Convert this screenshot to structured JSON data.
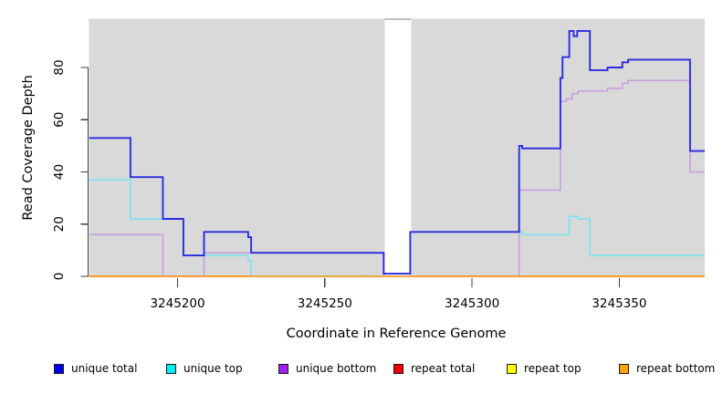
{
  "chart_data": {
    "type": "line",
    "step": true,
    "title": "",
    "xlabel": "Coordinate in Reference Genome",
    "ylabel": "Read Coverage Depth",
    "xlim": [
      3245170,
      3245379
    ],
    "ylim": [
      0,
      99
    ],
    "grid": false,
    "panel_bg": "#D9D9D9",
    "panels": [
      [
        3245170,
        3245270.3
      ],
      [
        3245279.3,
        3245379
      ]
    ],
    "panel_gap_top_line_color": "#ABABAB",
    "x_ticks": [
      3245200,
      3245250,
      3245300,
      3245350
    ],
    "x_tick_labels": [
      "3245200",
      "3245250",
      "3245300",
      "3245350"
    ],
    "y_ticks": [
      0,
      20,
      40,
      60,
      80
    ],
    "y_tick_labels": [
      "0",
      "20",
      "40",
      "60",
      "80"
    ],
    "axis_color": "#3c3c3c",
    "series": [
      {
        "name": "repeat top",
        "line_color": "#FFFF00",
        "points": [
          [
            3245170,
            0
          ],
          [
            3245379,
            0
          ]
        ]
      },
      {
        "name": "repeat total",
        "line_color": "#EE0000",
        "points": [
          [
            3245170,
            0
          ],
          [
            3245379,
            0
          ]
        ]
      },
      {
        "name": "unique top",
        "line_color": "#74E4EE",
        "points": [
          [
            3245170,
            37
          ],
          [
            3245184,
            22
          ],
          [
            3245202,
            8
          ],
          [
            3245224,
            6
          ],
          [
            3245225,
            0
          ],
          [
            3245279,
            17
          ],
          [
            3245317,
            16
          ],
          [
            3245333,
            23
          ],
          [
            3245336,
            22
          ],
          [
            3245340,
            8
          ],
          [
            3245379,
            8
          ]
        ]
      },
      {
        "name": "unique bottom",
        "line_color": "#C79BDF",
        "points": [
          [
            3245170,
            16
          ],
          [
            3245195,
            0
          ],
          [
            3245209,
            9
          ],
          [
            3245270,
            0
          ],
          [
            3245279,
            0
          ],
          [
            3245316,
            33
          ],
          [
            3245330,
            67
          ],
          [
            3245332,
            68
          ],
          [
            3245334,
            70
          ],
          [
            3245336,
            71
          ],
          [
            3245346,
            72
          ],
          [
            3245351,
            74
          ],
          [
            3245353,
            75
          ],
          [
            3245374,
            40
          ],
          [
            3245379,
            40
          ]
        ]
      },
      {
        "name": "repeat bottom",
        "line_color": "#FFA51E",
        "points": [
          [
            3245170,
            0
          ],
          [
            3245379,
            0
          ]
        ]
      },
      {
        "name": "unique total",
        "line_color": "#2B2BDF",
        "points": [
          [
            3245170,
            53
          ],
          [
            3245184,
            38
          ],
          [
            3245195,
            22
          ],
          [
            3245202,
            8
          ],
          [
            3245209,
            17
          ],
          [
            3245224,
            15
          ],
          [
            3245225,
            9
          ],
          [
            3245270,
            1
          ],
          [
            3245279,
            17
          ],
          [
            3245316,
            50
          ],
          [
            3245317,
            49
          ],
          [
            3245330,
            76
          ],
          [
            3245330.7,
            84
          ],
          [
            3245333,
            94
          ],
          [
            3245334.5,
            92
          ],
          [
            3245335.7,
            94
          ],
          [
            3245340,
            79
          ],
          [
            3245346,
            80
          ],
          [
            3245351,
            82
          ],
          [
            3245353,
            83
          ],
          [
            3245374,
            48
          ],
          [
            3245379,
            48
          ]
        ]
      }
    ],
    "zero_line_segments": [
      {
        "x0": 3245170,
        "x1": 3245195,
        "color": "#FFA51E"
      },
      {
        "x0": 3245195,
        "x1": 3245209,
        "color": "#D76FC0"
      },
      {
        "x0": 3245209,
        "x1": 3245225,
        "color": "#FF9E1F"
      },
      {
        "x0": 3245225,
        "x1": 3245270.3,
        "color": "#8FCE7F"
      },
      {
        "x0": 3245279.3,
        "x1": 3245316,
        "color": "#E25C74"
      },
      {
        "x0": 3245316,
        "x1": 3245379,
        "color": "#FFA51E"
      }
    ],
    "legend": [
      {
        "label": "unique total",
        "color": "#0000EE"
      },
      {
        "label": "unique top",
        "color": "#00EEEE"
      },
      {
        "label": "unique bottom",
        "color": "#A020F0"
      },
      {
        "label": "repeat total",
        "color": "#EE0000"
      },
      {
        "label": "repeat top",
        "color": "#FFFF00"
      },
      {
        "label": "repeat bottom",
        "color": "#FFA500"
      }
    ],
    "legend_position": "bottom"
  }
}
